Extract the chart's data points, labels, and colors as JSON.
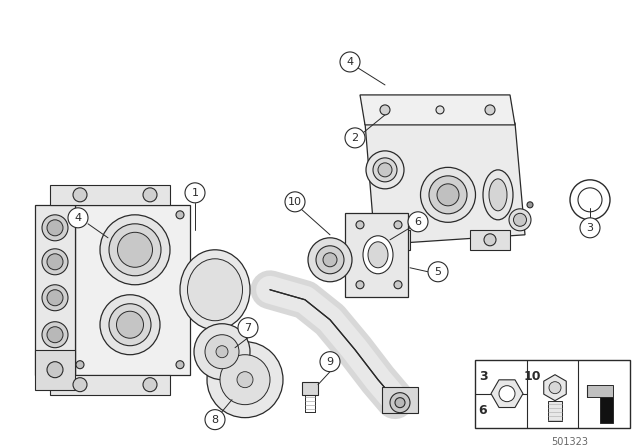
{
  "bg_color": "#ffffff",
  "line_color": "#2a2a2a",
  "figure_width": 6.4,
  "figure_height": 4.48,
  "dpi": 100,
  "footer_number": "501323"
}
